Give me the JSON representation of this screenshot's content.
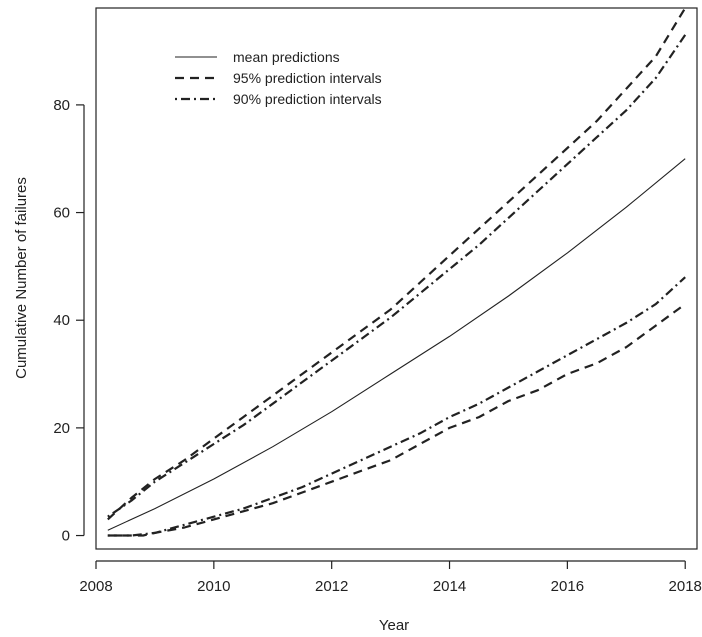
{
  "chart_data": {
    "type": "line",
    "title": "",
    "xlabel": "Year",
    "ylabel": "Cumulative Number of failures",
    "xlim": [
      2008,
      2018.2
    ],
    "ylim": [
      -2.5,
      98
    ],
    "xticks": [
      2008,
      2010,
      2012,
      2014,
      2016,
      2018
    ],
    "yticks": [
      0,
      20,
      40,
      60,
      80
    ],
    "grid": false,
    "legend_position": "top-left",
    "legend": [
      {
        "label": "mean predictions",
        "style": "solid"
      },
      {
        "label": "95% prediction intervals",
        "style": "dashed"
      },
      {
        "label": "90% prediction intervals",
        "style": "dotdash"
      }
    ],
    "series": [
      {
        "name": "mean predictions",
        "style": "solid",
        "x": [
          2008.2,
          2009,
          2010,
          2011,
          2012,
          2013,
          2014,
          2015,
          2016,
          2017,
          2018
        ],
        "y": [
          1,
          5,
          10.5,
          16.5,
          23,
          30,
          37,
          44.5,
          52.5,
          61,
          70
        ]
      },
      {
        "name": "95% prediction intervals upper",
        "style": "dashed",
        "x": [
          2008.2,
          2008.6,
          2009,
          2009.5,
          2010,
          2010.5,
          2011,
          2011.5,
          2012,
          2012.5,
          2013,
          2013.5,
          2014,
          2014.5,
          2015,
          2015.5,
          2016,
          2016.5,
          2017,
          2017.5,
          2018
        ],
        "y": [
          3,
          7,
          10.5,
          14,
          18,
          22,
          26,
          30,
          34,
          38,
          42,
          47,
          52,
          57,
          62,
          67,
          72,
          77,
          83,
          89,
          98
        ]
      },
      {
        "name": "95% prediction intervals lower",
        "style": "dashed",
        "x": [
          2008.2,
          2008.5,
          2008.8,
          2009,
          2009.5,
          2010,
          2010.5,
          2011,
          2011.5,
          2012,
          2012.5,
          2013,
          2013.5,
          2014,
          2014.5,
          2015,
          2015.5,
          2016,
          2016.5,
          2017,
          2017.5,
          2018
        ],
        "y": [
          0,
          0,
          0,
          0.5,
          1.5,
          3,
          4.5,
          6,
          8,
          10,
          12,
          14,
          17,
          20,
          22,
          25,
          27,
          30,
          32,
          35,
          39,
          43
        ]
      },
      {
        "name": "90% prediction intervals upper",
        "style": "dotdash",
        "x": [
          2008.2,
          2008.6,
          2009,
          2009.5,
          2010,
          2010.5,
          2011,
          2011.5,
          2012,
          2012.5,
          2013,
          2013.5,
          2014,
          2014.5,
          2015,
          2015.5,
          2016,
          2016.5,
          2017,
          2017.5,
          2018
        ],
        "y": [
          3.5,
          6.5,
          10,
          13.5,
          17,
          20.5,
          24.5,
          28.5,
          32.5,
          36.5,
          40.5,
          45,
          49.5,
          54,
          59,
          64,
          69,
          74,
          79,
          85,
          93
        ]
      },
      {
        "name": "90% prediction intervals lower",
        "style": "dotdash",
        "x": [
          2008.2,
          2008.6,
          2009,
          2009.5,
          2010,
          2010.5,
          2011,
          2011.5,
          2012,
          2012.5,
          2013,
          2013.5,
          2014,
          2014.5,
          2015,
          2015.5,
          2016,
          2016.5,
          2017,
          2017.5,
          2018
        ],
        "y": [
          0,
          0,
          0.5,
          2,
          3.5,
          5,
          7,
          9,
          11.5,
          14,
          16.5,
          19,
          22,
          24.5,
          27.5,
          30.5,
          33.5,
          36.5,
          39.5,
          43,
          48
        ]
      }
    ]
  }
}
